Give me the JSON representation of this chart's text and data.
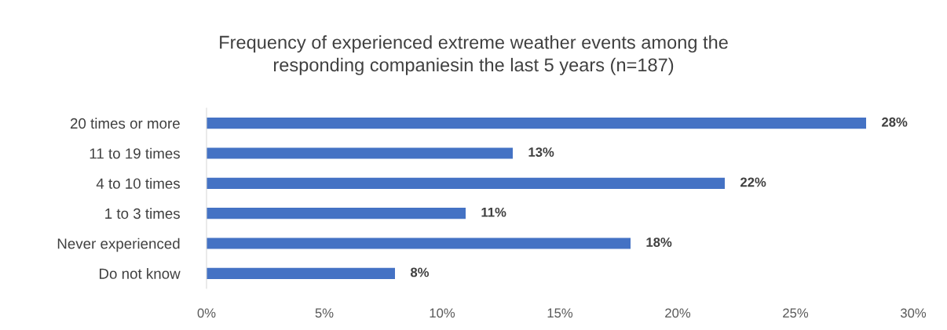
{
  "chart_data": {
    "type": "bar",
    "orientation": "horizontal",
    "title": "Frequency of experienced extreme weather events among the\nresponding companiesin the last 5 years (n=187)",
    "categories": [
      "20 times or more",
      "11 to 19 times",
      "4 to 10 times",
      "1 to 3 times",
      "Never experienced",
      "Do not know"
    ],
    "values": [
      28,
      13,
      22,
      11,
      18,
      8
    ],
    "value_labels": [
      "28%",
      "13%",
      "22%",
      "11%",
      "18%",
      "8%"
    ],
    "color": "#4472c4",
    "xlim": [
      0,
      30
    ],
    "xticks": [
      {
        "value": 0,
        "label": "0%"
      },
      {
        "value": 5,
        "label": "5%"
      },
      {
        "value": 10,
        "label": "10%"
      },
      {
        "value": 15,
        "label": "15%"
      },
      {
        "value": 20,
        "label": "20%"
      },
      {
        "value": 25,
        "label": "25%"
      },
      {
        "value": 30,
        "label": "30%"
      }
    ],
    "grid": false,
    "legend": false
  }
}
